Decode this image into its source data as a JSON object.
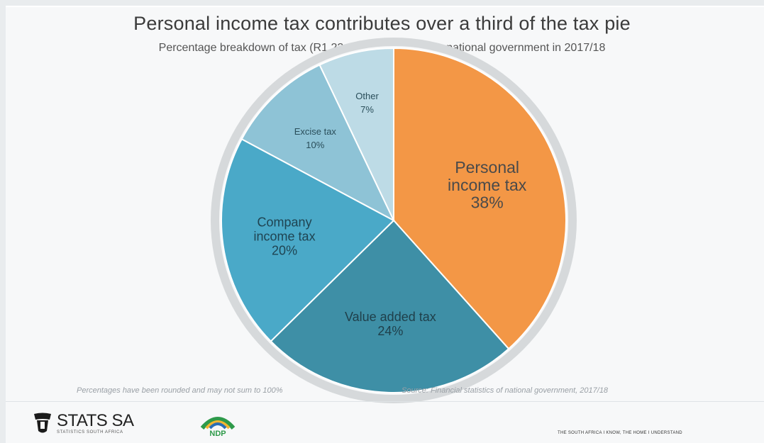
{
  "chart_data": {
    "type": "pie",
    "title": "Personal income tax contributes over a third of the tax pie",
    "subtitle": "Percentage breakdown of tax (R1,22 trillion) collected by national government in 2017/18",
    "unit": "%",
    "slices": [
      {
        "label_lines": [
          "Personal",
          "income tax"
        ],
        "value": 38,
        "value_label": "38%",
        "color": "#f39746",
        "text_color": "#4a4a4a"
      },
      {
        "label_lines": [
          "Value added tax"
        ],
        "value": 24,
        "value_label": "24%",
        "color": "#3e8fa6",
        "text_color": "#1f3f4a"
      },
      {
        "label_lines": [
          "Company",
          "income tax"
        ],
        "value": 20,
        "value_label": "20%",
        "color": "#4aa9c8",
        "text_color": "#1f4452"
      },
      {
        "label_lines": [
          "Excise tax"
        ],
        "value": 10,
        "value_label": "10%",
        "color": "#8ec3d6",
        "text_color": "#2a4e5a"
      },
      {
        "label_lines": [
          "Other"
        ],
        "value": 7,
        "value_label": "7%",
        "color": "#bddbe6",
        "text_color": "#2a4e5a"
      }
    ],
    "legend": "none"
  },
  "footnotes": {
    "rounding": "Percentages have been rounded and may not sum to 100%",
    "source": "Source: Financial statistics of national government, 2017/18"
  },
  "footer": {
    "logo_name": "STATS SA",
    "logo_sub": "STATISTICS SOUTH AFRICA",
    "logo_icon": "stats-sa-crest-icon",
    "ndp_logo_text": "NDP",
    "ndp_icon": "ndp-logo-icon",
    "tagline": "THE SOUTH AFRICA I KNOW, THE HOME I UNDERSTAND"
  }
}
